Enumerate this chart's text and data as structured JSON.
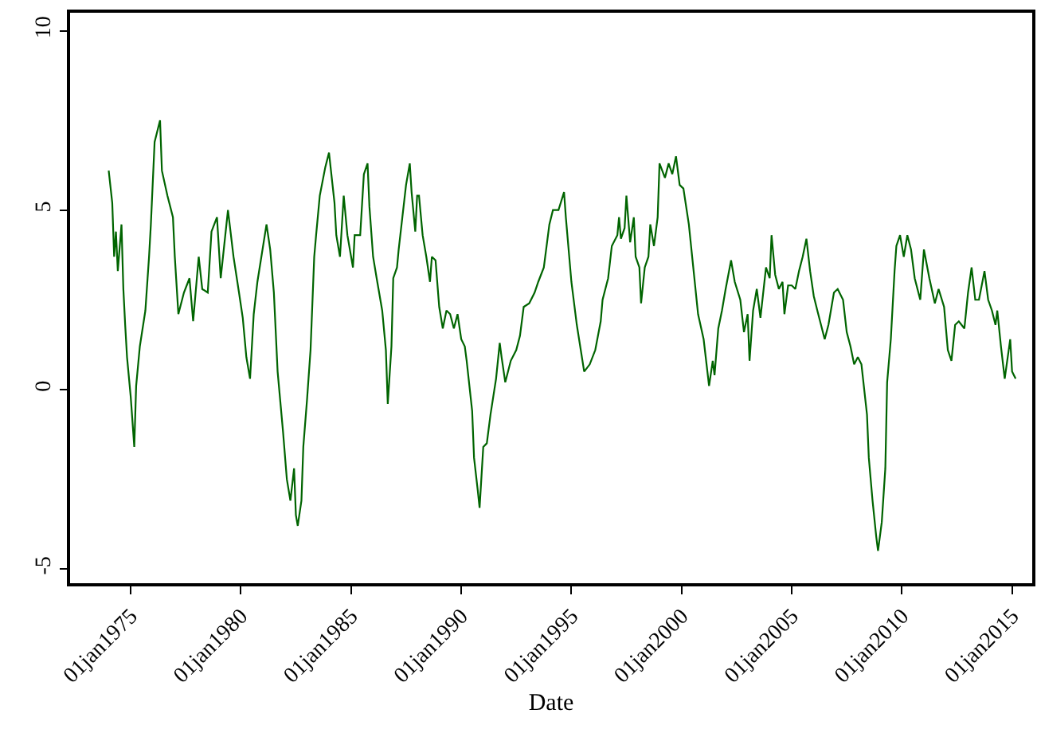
{
  "chart_data": {
    "type": "line",
    "xlabel": "Date",
    "x": [
      "1974-01",
      "1974-03",
      "1974-04",
      "1974-05",
      "1974-06",
      "1974-08",
      "1974-09",
      "1974-10",
      "1974-11",
      "1975-01",
      "1975-03",
      "1975-04",
      "1975-06",
      "1975-09",
      "1975-11",
      "1975-12",
      "1976-02",
      "1976-05",
      "1976-06",
      "1976-09",
      "1976-12",
      "1977-01",
      "1977-03",
      "1977-06",
      "1977-09",
      "1977-11",
      "1978-02",
      "1978-04",
      "1978-07",
      "1978-09",
      "1978-12",
      "1979-02",
      "1979-06",
      "1979-09",
      "1979-12",
      "1980-02",
      "1980-04",
      "1980-06",
      "1980-08",
      "1980-10",
      "1981-03",
      "1981-05",
      "1981-07",
      "1981-09",
      "1981-12",
      "1982-02",
      "1982-04",
      "1982-06",
      "1982-07",
      "1982-08",
      "1982-10",
      "1982-11",
      "1983-01",
      "1983-03",
      "1983-05",
      "1983-06",
      "1983-08",
      "1983-11",
      "1984-01",
      "1984-04",
      "1984-05",
      "1984-07",
      "1984-09",
      "1984-11",
      "1985-02",
      "1985-03",
      "1985-06",
      "1985-08",
      "1985-10",
      "1985-11",
      "1986-01",
      "1986-03",
      "1986-06",
      "1986-08",
      "1986-09",
      "1986-11",
      "1986-12",
      "1987-02",
      "1987-03",
      "1987-05",
      "1987-07",
      "1987-09",
      "1987-10",
      "1987-12",
      "1988-01",
      "1988-02",
      "1988-04",
      "1988-06",
      "1988-08",
      "1988-09",
      "1988-11",
      "1989-01",
      "1989-03",
      "1989-05",
      "1989-07",
      "1989-09",
      "1989-11",
      "1990-01",
      "1990-03",
      "1990-04",
      "1990-07",
      "1990-08",
      "1990-10",
      "1990-11",
      "1991-01",
      "1991-03",
      "1991-05",
      "1991-08",
      "1991-10",
      "1991-11",
      "1992-01",
      "1992-04",
      "1992-07",
      "1992-09",
      "1992-11",
      "1993-02",
      "1993-05",
      "1993-07",
      "1993-10",
      "1994-01",
      "1994-03",
      "1994-06",
      "1994-09",
      "1994-10",
      "1995-01",
      "1995-04",
      "1995-08",
      "1995-11",
      "1996-02",
      "1996-05",
      "1996-06",
      "1996-09",
      "1996-11",
      "1997-02",
      "1997-03",
      "1997-04",
      "1997-06",
      "1997-07",
      "1997-09",
      "1997-11",
      "1997-12",
      "1998-02",
      "1998-03",
      "1998-05",
      "1998-07",
      "1998-08",
      "1998-10",
      "1998-12",
      "1999-01",
      "1999-04",
      "1999-06",
      "1999-08",
      "1999-10",
      "1999-12",
      "2000-02",
      "2000-05",
      "2000-07",
      "2000-10",
      "2001-01",
      "2001-04",
      "2001-06",
      "2001-07",
      "2001-09",
      "2001-11",
      "2002-01",
      "2002-04",
      "2002-06",
      "2002-09",
      "2002-11",
      "2003-01",
      "2003-02",
      "2003-04",
      "2003-06",
      "2003-08",
      "2003-11",
      "2004-01",
      "2004-02",
      "2004-04",
      "2004-06",
      "2004-08",
      "2004-09",
      "2004-11",
      "2005-01",
      "2005-03",
      "2005-05",
      "2005-07",
      "2005-09",
      "2005-11",
      "2006-01",
      "2006-03",
      "2006-05",
      "2006-07",
      "2006-09",
      "2006-12",
      "2007-02",
      "2007-05",
      "2007-07",
      "2007-09",
      "2007-11",
      "2008-01",
      "2008-03",
      "2008-06",
      "2008-07",
      "2008-09",
      "2008-11",
      "2008-12",
      "2009-02",
      "2009-04",
      "2009-05",
      "2009-07",
      "2009-09",
      "2009-10",
      "2009-12",
      "2010-02",
      "2010-04",
      "2010-06",
      "2010-08",
      "2010-11",
      "2011-01",
      "2011-04",
      "2011-07",
      "2011-09",
      "2011-12",
      "2012-02",
      "2012-04",
      "2012-06",
      "2012-08",
      "2012-11",
      "2013-01",
      "2013-03",
      "2013-05",
      "2013-07",
      "2013-10",
      "2013-12",
      "2014-02",
      "2014-04",
      "2014-05",
      "2014-07",
      "2014-09",
      "2014-12",
      "2015-01",
      "2015-03"
    ],
    "series": [
      {
        "color": "#006400",
        "values": [
          6.1,
          5.2,
          3.7,
          4.4,
          3.3,
          4.6,
          2.8,
          1.8,
          0.9,
          -0.2,
          -1.6,
          0.1,
          1.2,
          2.2,
          3.7,
          4.6,
          6.9,
          7.5,
          6.1,
          5.4,
          4.8,
          3.7,
          2.1,
          2.7,
          3.1,
          1.9,
          3.7,
          2.8,
          2.7,
          4.4,
          4.8,
          3.1,
          5.0,
          3.7,
          2.7,
          2.0,
          0.9,
          0.3,
          2.1,
          3.0,
          4.6,
          3.9,
          2.7,
          0.5,
          -1.2,
          -2.5,
          -3.1,
          -2.2,
          -3.5,
          -3.8,
          -3.1,
          -1.6,
          -0.3,
          1.1,
          3.7,
          4.3,
          5.4,
          6.2,
          6.6,
          5.2,
          4.3,
          3.7,
          5.4,
          4.3,
          3.4,
          4.3,
          4.3,
          6.0,
          6.3,
          5.1,
          3.7,
          3.1,
          2.2,
          1.1,
          -0.4,
          1.2,
          3.1,
          3.4,
          3.9,
          4.8,
          5.7,
          6.3,
          5.5,
          4.4,
          5.4,
          5.4,
          4.3,
          3.7,
          3.0,
          3.7,
          3.6,
          2.3,
          1.7,
          2.2,
          2.1,
          1.7,
          2.1,
          1.4,
          1.2,
          0.8,
          -0.6,
          -1.9,
          -2.8,
          -3.3,
          -1.6,
          -1.5,
          -0.7,
          0.3,
          1.3,
          0.9,
          0.2,
          0.8,
          1.1,
          1.5,
          2.3,
          2.4,
          2.7,
          3.0,
          3.4,
          4.6,
          5.0,
          5.0,
          5.5,
          4.8,
          3.0,
          1.8,
          0.5,
          0.7,
          1.1,
          1.9,
          2.5,
          3.1,
          4.0,
          4.3,
          4.8,
          4.2,
          4.5,
          5.4,
          4.1,
          4.8,
          3.7,
          3.4,
          2.4,
          3.4,
          3.7,
          4.6,
          4.0,
          4.8,
          6.3,
          5.9,
          6.3,
          6.0,
          6.5,
          5.7,
          5.6,
          4.6,
          3.6,
          2.1,
          1.4,
          0.1,
          0.8,
          0.4,
          1.7,
          2.2,
          2.8,
          3.6,
          3.0,
          2.5,
          1.6,
          2.1,
          0.8,
          2.2,
          2.8,
          2.0,
          3.4,
          3.1,
          4.3,
          3.2,
          2.8,
          3.0,
          2.1,
          2.9,
          2.9,
          2.8,
          3.3,
          3.7,
          4.2,
          3.3,
          2.6,
          2.2,
          1.8,
          1.4,
          1.8,
          2.7,
          2.8,
          2.5,
          1.6,
          1.2,
          0.7,
          0.9,
          0.7,
          -0.7,
          -1.9,
          -3.1,
          -4.1,
          -4.5,
          -3.7,
          -2.2,
          0.2,
          1.4,
          3.3,
          4.0,
          4.3,
          3.7,
          4.3,
          3.9,
          3.1,
          2.5,
          3.9,
          3.1,
          2.4,
          2.8,
          2.3,
          1.1,
          0.8,
          1.8,
          1.9,
          1.7,
          2.7,
          3.4,
          2.5,
          2.5,
          3.3,
          2.5,
          2.2,
          1.8,
          2.2,
          1.2,
          0.3,
          1.4,
          0.5,
          0.3
        ]
      }
    ],
    "xlim": [
      "1972-04",
      "2015-12"
    ],
    "xticks": [
      {
        "value": "1975-01-01",
        "label": "01jan1975"
      },
      {
        "value": "1980-01-01",
        "label": "01jan1980"
      },
      {
        "value": "1985-01-01",
        "label": "01jan1985"
      },
      {
        "value": "1990-01-01",
        "label": "01jan1990"
      },
      {
        "value": "1995-01-01",
        "label": "01jan1995"
      },
      {
        "value": "2000-01-01",
        "label": "01jan2000"
      },
      {
        "value": "2005-01-01",
        "label": "01jan2005"
      },
      {
        "value": "2010-01-01",
        "label": "01jan2010"
      },
      {
        "value": "2015-01-01",
        "label": "01jan2015"
      }
    ],
    "ylim": [
      -5.4,
      10.5
    ],
    "yticks": [
      -5,
      0,
      5,
      10
    ]
  }
}
